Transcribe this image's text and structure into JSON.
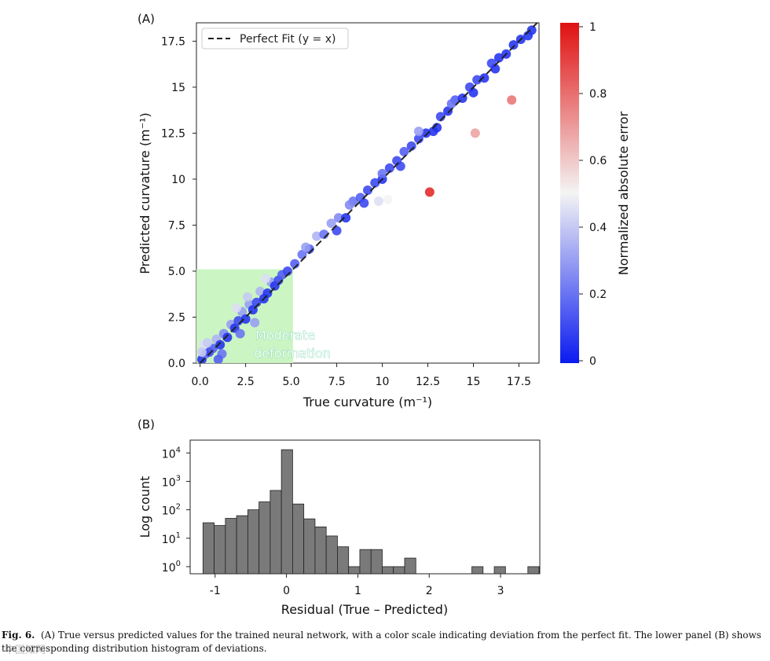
{
  "panelA": {
    "label": "(A)",
    "legend_label": "Perfect Fit (y = x)",
    "region_label_line1": "Moderate",
    "region_label_line2": "deformation",
    "colorbar_label": "Normalized absolute error",
    "colorbar_ticks": [
      "0",
      "0.2",
      "0.4",
      "0.6",
      "0.8",
      "1"
    ],
    "colors": {
      "low": "#0a1bf0",
      "mid": "#f4f4f4",
      "high": "#e01010",
      "region": "#c8f4c0"
    }
  },
  "panelB": {
    "label": "(B)",
    "bar_color": "#7a7a7a"
  },
  "caption": {
    "label": "Fig. 6.",
    "text": "(A) True versus predicted values for the trained neural network, with a color scale indicating deviation from the perfect fit. The lower panel (B) shows the corresponding distribution histogram of deviations."
  },
  "watermark": "中国知网",
  "chart_data": [
    {
      "type": "scatter",
      "xlabel": "True curvature (m⁻¹)",
      "ylabel": "Predicted curvature (m⁻¹)",
      "xlim": [
        -0.2,
        18.6
      ],
      "ylim": [
        0,
        18.5
      ],
      "xticks": [
        "0.0",
        "2.5",
        "5.0",
        "7.5",
        "10",
        "12.5",
        "15",
        "17.5"
      ],
      "yticks": [
        "0.0",
        "2.5",
        "5.0",
        "7.5",
        "10",
        "12.5",
        "15",
        "17.5"
      ],
      "xtick_values": [
        0,
        2.5,
        5,
        7.5,
        10,
        12.5,
        15,
        17.5
      ],
      "ytick_values": [
        0,
        2.5,
        5,
        7.5,
        10,
        12.5,
        15,
        17.5
      ],
      "highlight_region": {
        "x": [
          -0.2,
          5.1
        ],
        "y": [
          0,
          5.1
        ]
      },
      "reference_line": {
        "name": "Perfect Fit (y = x)",
        "style": "dashed"
      },
      "colorbar": {
        "label": "Normalized absolute error",
        "range": [
          0,
          1
        ]
      },
      "points": [
        [
          0.1,
          0.2,
          0.05
        ],
        [
          0.3,
          0.5,
          0.2
        ],
        [
          0.5,
          0.6,
          0.1
        ],
        [
          0.7,
          0.8,
          0.15
        ],
        [
          0.9,
          1.3,
          0.35
        ],
        [
          1.1,
          1.0,
          0.05
        ],
        [
          1.3,
          1.6,
          0.25
        ],
        [
          1.5,
          1.4,
          0.05
        ],
        [
          1.7,
          2.1,
          0.3
        ],
        [
          1.9,
          1.9,
          0.05
        ],
        [
          2.1,
          2.3,
          0.1
        ],
        [
          2.3,
          2.8,
          0.3
        ],
        [
          2.5,
          2.4,
          0.05
        ],
        [
          2.7,
          3.2,
          0.3
        ],
        [
          2.9,
          2.9,
          0.05
        ],
        [
          3.1,
          3.3,
          0.1
        ],
        [
          3.3,
          3.9,
          0.35
        ],
        [
          3.5,
          3.5,
          0.05
        ],
        [
          3.7,
          3.8,
          0.05
        ],
        [
          3.9,
          4.4,
          0.3
        ],
        [
          4.1,
          4.2,
          0.05
        ],
        [
          4.3,
          4.5,
          0.1
        ],
        [
          4.5,
          4.8,
          0.15
        ],
        [
          4.8,
          5.0,
          0.1
        ],
        [
          0.2,
          1.0,
          0.45
        ],
        [
          0.1,
          0.6,
          0.4
        ],
        [
          0.4,
          1.1,
          0.4
        ],
        [
          1.2,
          0.5,
          0.2
        ],
        [
          2.2,
          1.6,
          0.2
        ],
        [
          3.0,
          2.2,
          0.3
        ],
        [
          3.6,
          4.6,
          0.45
        ],
        [
          2.0,
          3.0,
          0.45
        ],
        [
          1.0,
          0.2,
          0.15
        ],
        [
          2.6,
          3.6,
          0.4
        ],
        [
          5.2,
          5.4,
          0.15
        ],
        [
          5.6,
          5.9,
          0.2
        ],
        [
          6.0,
          6.2,
          0.15
        ],
        [
          6.4,
          6.9,
          0.35
        ],
        [
          6.8,
          7.0,
          0.2
        ],
        [
          7.2,
          7.6,
          0.3
        ],
        [
          7.6,
          7.9,
          0.25
        ],
        [
          8.0,
          7.9,
          0.05
        ],
        [
          8.4,
          8.8,
          0.2
        ],
        [
          8.8,
          9.0,
          0.15
        ],
        [
          9.2,
          9.4,
          0.1
        ],
        [
          9.6,
          9.8,
          0.1
        ],
        [
          10.0,
          10.0,
          0.05
        ],
        [
          10.4,
          10.6,
          0.1
        ],
        [
          10.8,
          11.0,
          0.1
        ],
        [
          11.2,
          11.5,
          0.15
        ],
        [
          11.6,
          11.8,
          0.1
        ],
        [
          12.0,
          12.2,
          0.1
        ],
        [
          12.4,
          12.5,
          0.05
        ],
        [
          12.8,
          12.6,
          0.05
        ],
        [
          13.2,
          13.4,
          0.1
        ],
        [
          13.6,
          13.7,
          0.05
        ],
        [
          14.0,
          14.3,
          0.15
        ],
        [
          14.4,
          14.4,
          0.05
        ],
        [
          14.8,
          15.0,
          0.1
        ],
        [
          15.2,
          15.4,
          0.1
        ],
        [
          15.6,
          15.5,
          0.05
        ],
        [
          16.0,
          16.3,
          0.1
        ],
        [
          16.4,
          16.6,
          0.05
        ],
        [
          16.8,
          16.8,
          0.05
        ],
        [
          17.2,
          17.3,
          0.05
        ],
        [
          17.6,
          17.6,
          0.05
        ],
        [
          18.0,
          17.8,
          0.05
        ],
        [
          18.2,
          18.1,
          0.05
        ],
        [
          7.5,
          7.2,
          0.1
        ],
        [
          9.0,
          8.7,
          0.1
        ],
        [
          11.0,
          10.7,
          0.1
        ],
        [
          13.0,
          12.8,
          0.05
        ],
        [
          15.0,
          14.7,
          0.05
        ],
        [
          16.2,
          16.0,
          0.05
        ],
        [
          5.8,
          6.3,
          0.3
        ],
        [
          8.2,
          8.6,
          0.25
        ],
        [
          10.0,
          10.3,
          0.2
        ],
        [
          12.0,
          12.6,
          0.3
        ],
        [
          13.8,
          14.1,
          0.2
        ],
        [
          9.8,
          8.8,
          0.45
        ],
        [
          10.3,
          8.9,
          0.5
        ],
        [
          12.6,
          9.3,
          0.95
        ],
        [
          15.1,
          12.5,
          0.68
        ],
        [
          17.1,
          14.3,
          0.78
        ]
      ]
    },
    {
      "type": "bar",
      "subtype": "histogram",
      "xlabel": "Residual (True – Predicted)",
      "ylabel": "Log count",
      "yscale": "log",
      "xlim": [
        -1.35,
        3.55
      ],
      "ylim_log10": [
        -0.25,
        4.45
      ],
      "bin_width": 0.157,
      "xticks": [
        "-1",
        "0",
        "1",
        "2",
        "3"
      ],
      "xtick_values": [
        -1,
        0,
        1,
        2,
        3
      ],
      "ytick_bases": [
        "10",
        "10",
        "10",
        "10",
        "10"
      ],
      "ytick_exponents": [
        "4",
        "3",
        "2",
        "1",
        "0"
      ],
      "ytick_values_log10": [
        4,
        3,
        2,
        1,
        0
      ],
      "bins": [
        {
          "left": -1.17,
          "count": 35
        },
        {
          "left": -1.013,
          "count": 28
        },
        {
          "left": -0.856,
          "count": 50
        },
        {
          "left": -0.699,
          "count": 62
        },
        {
          "left": -0.542,
          "count": 100
        },
        {
          "left": -0.385,
          "count": 190
        },
        {
          "left": -0.228,
          "count": 480
        },
        {
          "left": -0.071,
          "count": 13000
        },
        {
          "left": 0.086,
          "count": 160
        },
        {
          "left": 0.243,
          "count": 48
        },
        {
          "left": 0.4,
          "count": 25
        },
        {
          "left": 0.557,
          "count": 12
        },
        {
          "left": 0.714,
          "count": 5
        },
        {
          "left": 0.871,
          "count": 1
        },
        {
          "left": 1.028,
          "count": 4
        },
        {
          "left": 1.185,
          "count": 4
        },
        {
          "left": 1.342,
          "count": 1
        },
        {
          "left": 1.499,
          "count": 1
        },
        {
          "left": 1.656,
          "count": 2
        },
        {
          "left": 2.598,
          "count": 1
        },
        {
          "left": 2.912,
          "count": 1
        },
        {
          "left": 3.383,
          "count": 1
        }
      ]
    }
  ]
}
